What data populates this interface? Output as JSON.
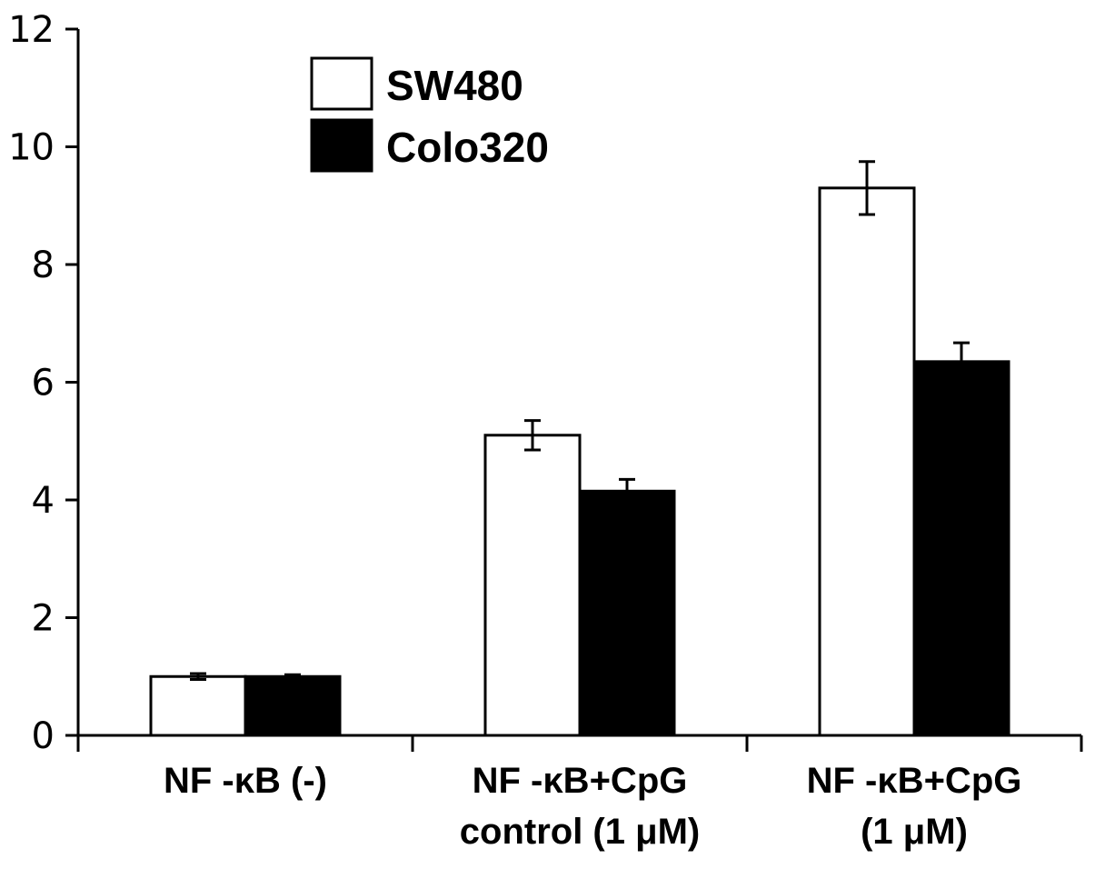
{
  "chart_data": {
    "type": "bar",
    "title": "",
    "xlabel": "",
    "ylabel": "",
    "ylim": [
      0,
      12
    ],
    "yticks": [
      "0",
      "2",
      "4",
      "6",
      "8",
      "10",
      "12"
    ],
    "categories": [
      [
        "NF -κB (-)"
      ],
      [
        "NF -κB+CpG",
        "control (1 μM)"
      ],
      [
        "NF -κB+CpG",
        "(1 μM)"
      ]
    ],
    "series": [
      {
        "name": "SW480",
        "color": "#ffffff",
        "values": [
          1.0,
          5.1,
          9.3
        ],
        "errors": [
          0.05,
          0.25,
          0.45
        ]
      },
      {
        "name": "Colo320",
        "color": "#000000",
        "values": [
          1.0,
          4.15,
          6.35
        ],
        "errors": [
          0.03,
          0.2,
          0.32
        ]
      }
    ],
    "legend": "top-left",
    "grid": false
  }
}
